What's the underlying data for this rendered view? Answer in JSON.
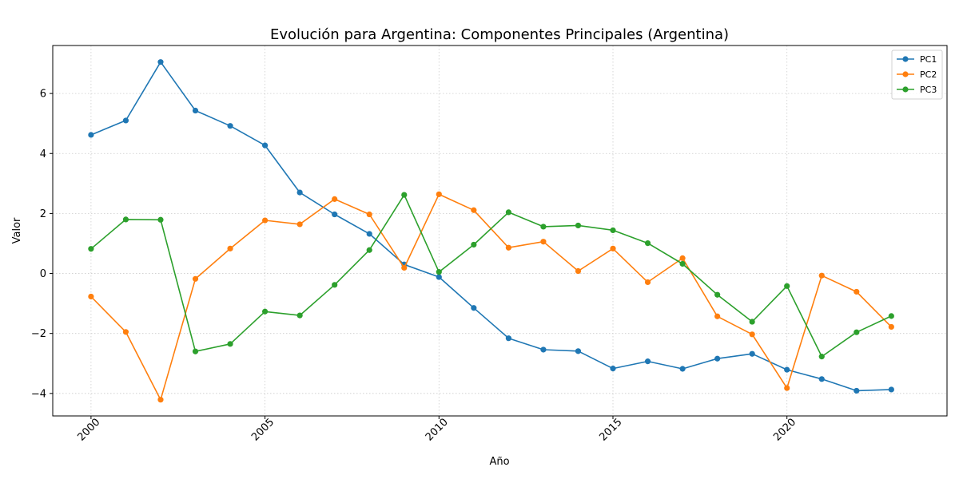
{
  "chart_data": {
    "type": "line",
    "title": "Evolución para Argentina: Componentes Principales (Argentina)",
    "xlabel": "Año",
    "ylabel": "Valor",
    "x": [
      2000,
      2001,
      2002,
      2003,
      2004,
      2005,
      2006,
      2007,
      2008,
      2009,
      2010,
      2011,
      2012,
      2013,
      2014,
      2015,
      2016,
      2017,
      2018,
      2019,
      2020,
      2021,
      2022,
      2023
    ],
    "xticks": [
      2000,
      2005,
      2010,
      2015,
      2020
    ],
    "xtick_labels": [
      "2000",
      "2005",
      "2010",
      "2015",
      "2020"
    ],
    "yticks": [
      -4,
      -2,
      0,
      2,
      4,
      6
    ],
    "ytick_labels": [
      "−4",
      "−2",
      "0",
      "2",
      "4",
      "6"
    ],
    "xlim": [
      1998.9,
      2024.6
    ],
    "ylim": [
      -4.75,
      7.6
    ],
    "grid": true,
    "legend_position": "top-right",
    "series": [
      {
        "name": "PC1",
        "color": "#1f77b4",
        "values": [
          4.62,
          5.1,
          7.05,
          5.43,
          4.92,
          4.27,
          2.7,
          1.97,
          1.32,
          0.3,
          -0.12,
          -1.15,
          -2.16,
          -2.54,
          -2.59,
          -3.17,
          -2.93,
          -3.18,
          -2.84,
          -2.68,
          -3.21,
          -3.52,
          -3.91,
          -3.87
        ]
      },
      {
        "name": "PC2",
        "color": "#ff7f0e",
        "values": [
          -0.77,
          -1.95,
          -4.21,
          -0.18,
          0.83,
          1.77,
          1.64,
          2.48,
          1.97,
          0.19,
          2.64,
          2.11,
          0.86,
          1.06,
          0.08,
          0.83,
          -0.29,
          0.51,
          -1.43,
          -2.03,
          -3.82,
          -0.07,
          -0.61,
          -1.78
        ]
      },
      {
        "name": "PC3",
        "color": "#2ca02c",
        "values": [
          0.82,
          1.8,
          1.79,
          -2.6,
          -2.35,
          -1.27,
          -1.4,
          -0.38,
          0.78,
          2.62,
          0.05,
          0.96,
          2.04,
          1.56,
          1.6,
          1.44,
          1.01,
          0.32,
          -0.71,
          -1.61,
          -0.42,
          -2.77,
          -1.96,
          -1.42
        ]
      }
    ]
  }
}
